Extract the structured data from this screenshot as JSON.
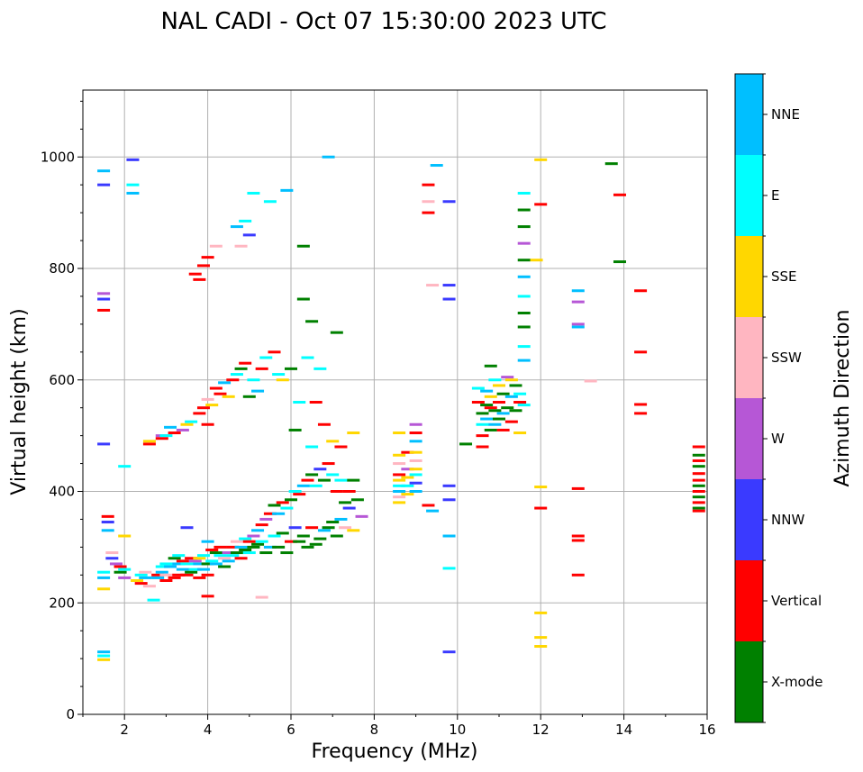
{
  "chart_data": {
    "type": "scatter",
    "title": "NAL CADI - Oct 07 15:30:00 2023 UTC",
    "xlabel": "Frequency (MHz)",
    "ylabel": "Virtual height (km)",
    "xlim": [
      1,
      16
    ],
    "ylim": [
      0,
      1120
    ],
    "xticks": [
      2,
      4,
      6,
      8,
      10,
      12,
      14,
      16
    ],
    "yticks": [
      0,
      200,
      400,
      600,
      800,
      1000
    ],
    "grid": true,
    "colorbar": {
      "title": "Azimuth Direction",
      "categories": [
        {
          "name": "X-mode",
          "color": "#008000"
        },
        {
          "name": "Vertical",
          "color": "#ff0000"
        },
        {
          "name": "NNW",
          "color": "#3a3aff"
        },
        {
          "name": "W",
          "color": "#b657d6"
        },
        {
          "name": "SSW",
          "color": "#ffb6c1"
        },
        {
          "name": "SSE",
          "color": "#ffd700"
        },
        {
          "name": "E",
          "color": "#00ffff"
        },
        {
          "name": "NNE",
          "color": "#00bfff"
        }
      ]
    },
    "points": [
      [
        1.5,
        975,
        7
      ],
      [
        1.5,
        950,
        2
      ],
      [
        1.5,
        755,
        3
      ],
      [
        1.5,
        745,
        2
      ],
      [
        1.5,
        725,
        1
      ],
      [
        1.5,
        485,
        2
      ],
      [
        1.5,
        255,
        6
      ],
      [
        1.5,
        245,
        7
      ],
      [
        1.5,
        112,
        7
      ],
      [
        1.5,
        105,
        6
      ],
      [
        1.5,
        98,
        5
      ],
      [
        1.5,
        225,
        5
      ],
      [
        1.6,
        355,
        1
      ],
      [
        1.6,
        345,
        2
      ],
      [
        1.6,
        330,
        7
      ],
      [
        1.7,
        290,
        4
      ],
      [
        1.7,
        280,
        2
      ],
      [
        1.8,
        270,
        3
      ],
      [
        1.9,
        255,
        0
      ],
      [
        1.9,
        265,
        1
      ],
      [
        2.0,
        245,
        3
      ],
      [
        2.0,
        260,
        6
      ],
      [
        2.0,
        320,
        5
      ],
      [
        2.0,
        445,
        6
      ],
      [
        2.2,
        995,
        2
      ],
      [
        2.2,
        950,
        6
      ],
      [
        2.2,
        935,
        7
      ],
      [
        2.3,
        240,
        5
      ],
      [
        2.4,
        250,
        6
      ],
      [
        2.4,
        235,
        1
      ],
      [
        2.5,
        245,
        7
      ],
      [
        2.5,
        255,
        4
      ],
      [
        2.6,
        230,
        4
      ],
      [
        2.6,
        485,
        1
      ],
      [
        2.6,
        490,
        5
      ],
      [
        2.7,
        205,
        6
      ],
      [
        2.8,
        250,
        1
      ],
      [
        2.8,
        245,
        7
      ],
      [
        2.9,
        255,
        7
      ],
      [
        2.9,
        265,
        6
      ],
      [
        2.9,
        495,
        1
      ],
      [
        2.9,
        500,
        3
      ],
      [
        3.0,
        240,
        1
      ],
      [
        3.0,
        250,
        4
      ],
      [
        3.0,
        270,
        6
      ],
      [
        3.0,
        500,
        6
      ],
      [
        3.1,
        515,
        7
      ],
      [
        3.1,
        265,
        7
      ],
      [
        3.2,
        245,
        1
      ],
      [
        3.2,
        280,
        0
      ],
      [
        3.2,
        505,
        1
      ],
      [
        3.3,
        250,
        1
      ],
      [
        3.3,
        270,
        7
      ],
      [
        3.3,
        285,
        6
      ],
      [
        3.4,
        260,
        7
      ],
      [
        3.4,
        275,
        1
      ],
      [
        3.4,
        510,
        3
      ],
      [
        3.5,
        250,
        1
      ],
      [
        3.5,
        270,
        6
      ],
      [
        3.5,
        335,
        2
      ],
      [
        3.5,
        520,
        5
      ],
      [
        3.6,
        255,
        0
      ],
      [
        3.6,
        280,
        1
      ],
      [
        3.6,
        525,
        6
      ],
      [
        3.7,
        260,
        6
      ],
      [
        3.7,
        275,
        3
      ],
      [
        3.7,
        790,
        1
      ],
      [
        3.8,
        245,
        1
      ],
      [
        3.8,
        270,
        7
      ],
      [
        3.8,
        280,
        5
      ],
      [
        3.8,
        540,
        1
      ],
      [
        3.8,
        780,
        1
      ],
      [
        3.9,
        260,
        7
      ],
      [
        3.9,
        285,
        6
      ],
      [
        3.9,
        550,
        1
      ],
      [
        3.9,
        805,
        1
      ],
      [
        4.0,
        250,
        1
      ],
      [
        4.0,
        270,
        0
      ],
      [
        4.0,
        310,
        7
      ],
      [
        4.0,
        520,
        1
      ],
      [
        4.0,
        565,
        4
      ],
      [
        4.0,
        820,
        1
      ],
      [
        4.0,
        212,
        1
      ],
      [
        4.1,
        275,
        6
      ],
      [
        4.1,
        295,
        1
      ],
      [
        4.1,
        555,
        5
      ],
      [
        4.2,
        270,
        7
      ],
      [
        4.2,
        290,
        0
      ],
      [
        4.2,
        585,
        1
      ],
      [
        4.2,
        840,
        4
      ],
      [
        4.3,
        285,
        6
      ],
      [
        4.3,
        300,
        1
      ],
      [
        4.3,
        575,
        1
      ],
      [
        4.4,
        280,
        4
      ],
      [
        4.4,
        265,
        0
      ],
      [
        4.4,
        595,
        7
      ],
      [
        4.5,
        290,
        3
      ],
      [
        4.5,
        275,
        7
      ],
      [
        4.5,
        570,
        5
      ],
      [
        4.6,
        300,
        1
      ],
      [
        4.6,
        285,
        6
      ],
      [
        4.6,
        600,
        1
      ],
      [
        4.7,
        290,
        0
      ],
      [
        4.7,
        310,
        4
      ],
      [
        4.7,
        610,
        6
      ],
      [
        4.7,
        875,
        7
      ],
      [
        4.8,
        300,
        7
      ],
      [
        4.8,
        280,
        1
      ],
      [
        4.8,
        620,
        0
      ],
      [
        4.8,
        840,
        4
      ],
      [
        4.9,
        315,
        6
      ],
      [
        4.9,
        295,
        0
      ],
      [
        4.9,
        630,
        1
      ],
      [
        4.9,
        885,
        6
      ],
      [
        5.0,
        310,
        1
      ],
      [
        5.0,
        290,
        6
      ],
      [
        5.0,
        570,
        0
      ],
      [
        5.0,
        860,
        2
      ],
      [
        5.1,
        320,
        3
      ],
      [
        5.1,
        300,
        0
      ],
      [
        5.1,
        600,
        6
      ],
      [
        5.1,
        935,
        6
      ],
      [
        5.2,
        330,
        7
      ],
      [
        5.2,
        305,
        0
      ],
      [
        5.2,
        580,
        7
      ],
      [
        5.3,
        340,
        1
      ],
      [
        5.3,
        310,
        6
      ],
      [
        5.3,
        210,
        4
      ],
      [
        5.3,
        620,
        1
      ],
      [
        5.4,
        350,
        3
      ],
      [
        5.4,
        290,
        0
      ],
      [
        5.4,
        640,
        6
      ],
      [
        5.5,
        360,
        1
      ],
      [
        5.5,
        300,
        7
      ],
      [
        5.5,
        920,
        6
      ],
      [
        5.6,
        375,
        0
      ],
      [
        5.6,
        320,
        6
      ],
      [
        5.6,
        650,
        1
      ],
      [
        5.7,
        360,
        7
      ],
      [
        5.7,
        300,
        0
      ],
      [
        5.7,
        610,
        6
      ],
      [
        5.8,
        380,
        1
      ],
      [
        5.8,
        325,
        0
      ],
      [
        5.8,
        600,
        5
      ],
      [
        5.9,
        370,
        6
      ],
      [
        5.9,
        290,
        0
      ],
      [
        5.9,
        940,
        7
      ],
      [
        6.0,
        385,
        0
      ],
      [
        6.0,
        310,
        1
      ],
      [
        6.0,
        620,
        0
      ],
      [
        6.1,
        400,
        6
      ],
      [
        6.1,
        335,
        2
      ],
      [
        6.1,
        510,
        0
      ],
      [
        6.2,
        395,
        1
      ],
      [
        6.2,
        310,
        0
      ],
      [
        6.2,
        560,
        6
      ],
      [
        6.3,
        410,
        7
      ],
      [
        6.3,
        320,
        0
      ],
      [
        6.3,
        745,
        0
      ],
      [
        6.3,
        840,
        0
      ],
      [
        6.4,
        420,
        1
      ],
      [
        6.4,
        300,
        0
      ],
      [
        6.4,
        640,
        6
      ],
      [
        6.5,
        430,
        0
      ],
      [
        6.5,
        335,
        1
      ],
      [
        6.5,
        480,
        6
      ],
      [
        6.5,
        705,
        0
      ],
      [
        6.6,
        410,
        6
      ],
      [
        6.6,
        305,
        0
      ],
      [
        6.6,
        560,
        1
      ],
      [
        6.7,
        440,
        2
      ],
      [
        6.7,
        315,
        0
      ],
      [
        6.7,
        620,
        6
      ],
      [
        6.8,
        420,
        0
      ],
      [
        6.8,
        330,
        7
      ],
      [
        6.8,
        520,
        1
      ],
      [
        6.9,
        450,
        1
      ],
      [
        6.9,
        335,
        0
      ],
      [
        6.9,
        1000,
        7
      ],
      [
        7.0,
        430,
        6
      ],
      [
        7.0,
        345,
        0
      ],
      [
        7.0,
        490,
        5
      ],
      [
        7.1,
        400,
        1
      ],
      [
        7.1,
        320,
        0
      ],
      [
        7.1,
        685,
        0
      ],
      [
        7.2,
        420,
        6
      ],
      [
        7.2,
        350,
        7
      ],
      [
        7.2,
        480,
        1
      ],
      [
        7.3,
        380,
        0
      ],
      [
        7.3,
        335,
        4
      ],
      [
        7.4,
        400,
        1
      ],
      [
        7.5,
        420,
        0
      ],
      [
        7.5,
        330,
        5
      ],
      [
        7.5,
        505,
        5
      ],
      [
        7.6,
        385,
        0
      ],
      [
        7.7,
        355,
        3
      ],
      [
        7.4,
        370,
        2
      ],
      [
        8.6,
        505,
        5
      ],
      [
        8.6,
        465,
        5
      ],
      [
        8.6,
        450,
        4
      ],
      [
        8.6,
        430,
        1
      ],
      [
        8.6,
        420,
        5
      ],
      [
        8.6,
        410,
        6
      ],
      [
        8.6,
        400,
        7
      ],
      [
        8.6,
        390,
        4
      ],
      [
        8.6,
        380,
        5
      ],
      [
        8.8,
        470,
        1
      ],
      [
        8.8,
        440,
        3
      ],
      [
        8.8,
        425,
        5
      ],
      [
        8.8,
        410,
        6
      ],
      [
        8.8,
        395,
        5
      ],
      [
        9.0,
        520,
        3
      ],
      [
        9.0,
        505,
        1
      ],
      [
        9.0,
        490,
        7
      ],
      [
        9.0,
        470,
        5
      ],
      [
        9.0,
        455,
        4
      ],
      [
        9.0,
        440,
        5
      ],
      [
        9.0,
        430,
        6
      ],
      [
        9.0,
        415,
        2
      ],
      [
        9.0,
        400,
        7
      ],
      [
        9.3,
        950,
        1
      ],
      [
        9.3,
        920,
        4
      ],
      [
        9.3,
        900,
        1
      ],
      [
        9.4,
        770,
        4
      ],
      [
        9.5,
        985,
        7
      ],
      [
        9.3,
        375,
        1
      ],
      [
        9.4,
        365,
        7
      ],
      [
        9.8,
        920,
        2
      ],
      [
        9.8,
        770,
        2
      ],
      [
        9.8,
        745,
        2
      ],
      [
        9.8,
        410,
        2
      ],
      [
        9.8,
        385,
        2
      ],
      [
        9.8,
        320,
        7
      ],
      [
        9.8,
        262,
        6
      ],
      [
        9.8,
        112,
        2
      ],
      [
        10.2,
        485,
        0
      ],
      [
        10.5,
        585,
        6
      ],
      [
        10.5,
        560,
        1
      ],
      [
        10.6,
        540,
        0
      ],
      [
        10.6,
        520,
        6
      ],
      [
        10.6,
        500,
        1
      ],
      [
        10.6,
        480,
        1
      ],
      [
        10.7,
        580,
        7
      ],
      [
        10.7,
        555,
        0
      ],
      [
        10.7,
        530,
        7
      ],
      [
        10.8,
        625,
        0
      ],
      [
        10.8,
        570,
        5
      ],
      [
        10.8,
        550,
        1
      ],
      [
        10.8,
        510,
        0
      ],
      [
        10.9,
        600,
        6
      ],
      [
        10.9,
        545,
        0
      ],
      [
        10.9,
        520,
        7
      ],
      [
        11.0,
        590,
        5
      ],
      [
        11.0,
        560,
        1
      ],
      [
        11.0,
        530,
        0
      ],
      [
        11.1,
        575,
        0
      ],
      [
        11.1,
        540,
        7
      ],
      [
        11.1,
        510,
        1
      ],
      [
        11.2,
        605,
        3
      ],
      [
        11.2,
        550,
        0
      ],
      [
        11.3,
        600,
        5
      ],
      [
        11.3,
        570,
        7
      ],
      [
        11.3,
        525,
        1
      ],
      [
        11.4,
        590,
        0
      ],
      [
        11.4,
        545,
        0
      ],
      [
        11.5,
        575,
        6
      ],
      [
        11.5,
        505,
        5
      ],
      [
        11.6,
        935,
        6
      ],
      [
        11.6,
        905,
        0
      ],
      [
        11.6,
        875,
        0
      ],
      [
        11.6,
        845,
        3
      ],
      [
        11.6,
        815,
        0
      ],
      [
        11.6,
        785,
        7
      ],
      [
        11.6,
        750,
        6
      ],
      [
        11.6,
        720,
        0
      ],
      [
        11.6,
        695,
        0
      ],
      [
        11.6,
        660,
        6
      ],
      [
        11.6,
        635,
        7
      ],
      [
        11.6,
        555,
        6
      ],
      [
        11.5,
        560,
        1
      ],
      [
        11.9,
        815,
        5
      ],
      [
        12.0,
        995,
        5
      ],
      [
        12.0,
        915,
        1
      ],
      [
        12.0,
        408,
        5
      ],
      [
        12.0,
        370,
        1
      ],
      [
        12.0,
        182,
        5
      ],
      [
        12.0,
        138,
        5
      ],
      [
        12.0,
        122,
        5
      ],
      [
        12.9,
        760,
        7
      ],
      [
        12.9,
        740,
        3
      ],
      [
        12.9,
        700,
        3
      ],
      [
        12.9,
        695,
        7
      ],
      [
        12.9,
        405,
        1
      ],
      [
        12.9,
        320,
        1
      ],
      [
        12.9,
        312,
        1
      ],
      [
        12.9,
        250,
        1
      ],
      [
        13.2,
        598,
        4
      ],
      [
        13.7,
        988,
        0
      ],
      [
        13.9,
        932,
        1
      ],
      [
        13.9,
        812,
        0
      ],
      [
        14.4,
        760,
        1
      ],
      [
        14.4,
        650,
        1
      ],
      [
        14.4,
        556,
        1
      ],
      [
        14.4,
        540,
        1
      ],
      [
        15.8,
        480,
        1
      ],
      [
        15.8,
        465,
        0
      ],
      [
        15.8,
        455,
        1
      ],
      [
        15.8,
        445,
        0
      ],
      [
        15.8,
        432,
        1
      ],
      [
        15.8,
        420,
        1
      ],
      [
        15.8,
        410,
        0
      ],
      [
        15.8,
        400,
        1
      ],
      [
        15.8,
        390,
        0
      ],
      [
        15.8,
        380,
        1
      ],
      [
        15.8,
        370,
        0
      ],
      [
        15.8,
        365,
        1
      ]
    ]
  }
}
